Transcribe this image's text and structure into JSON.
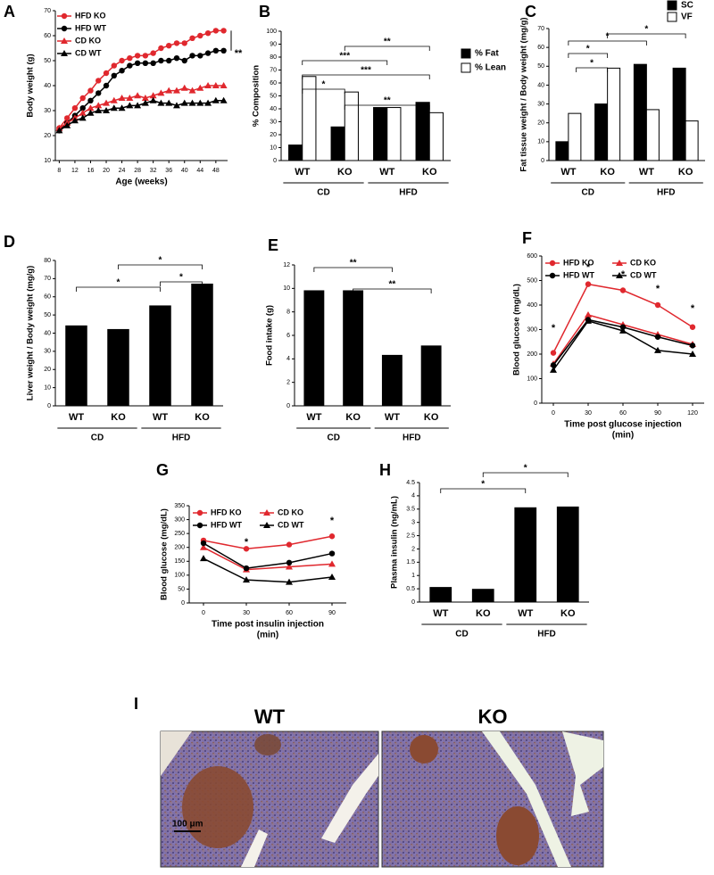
{
  "chart_data": [
    {
      "type": "line",
      "label": "A",
      "xlabel": "Age (weeks)",
      "ylabel": "Body weight (g)",
      "x": [
        8,
        10,
        12,
        14,
        16,
        18,
        20,
        22,
        24,
        26,
        28,
        30,
        32,
        34,
        36,
        38,
        40,
        42,
        44,
        46,
        48,
        50
      ],
      "xlim": [
        7,
        51
      ],
      "xticks": [
        8,
        12,
        16,
        20,
        24,
        28,
        32,
        36,
        40,
        44,
        48
      ],
      "ylim": [
        10,
        70
      ],
      "yticks": [
        10,
        20,
        30,
        40,
        50,
        60,
        70
      ],
      "legend": "upper left",
      "annotations": [
        "**"
      ],
      "series": [
        {
          "name": "HFD KO",
          "color": "#e0282e",
          "marker": "circle",
          "values": [
            23,
            27,
            31,
            35,
            38,
            42,
            45,
            48,
            50,
            51,
            52,
            52,
            53,
            55,
            56,
            57,
            57,
            59,
            60,
            61,
            62,
            62
          ]
        },
        {
          "name": "HFD WT",
          "color": "#000000",
          "marker": "circle",
          "values": [
            22,
            25,
            28,
            31,
            34,
            37,
            40,
            44,
            46,
            48,
            49,
            49,
            49,
            50,
            50,
            51,
            50,
            52,
            52,
            53,
            54,
            54
          ]
        },
        {
          "name": "CD KO",
          "color": "#e0282e",
          "marker": "triangle",
          "values": [
            23,
            25,
            27,
            29,
            31,
            32,
            33,
            34,
            35,
            35,
            36,
            35,
            36,
            37,
            38,
            38,
            39,
            38,
            39,
            40,
            40,
            40
          ]
        },
        {
          "name": "CD WT",
          "color": "#000000",
          "marker": "triangle",
          "values": [
            22,
            24,
            26,
            27,
            29,
            30,
            30,
            31,
            31,
            32,
            32,
            33,
            34,
            33,
            33,
            32,
            33,
            33,
            33,
            33,
            34,
            34
          ]
        }
      ]
    },
    {
      "type": "bar",
      "label": "B",
      "ylabel": "% Composition",
      "categories": [
        "WT",
        "KO",
        "WT",
        "KO"
      ],
      "groups": [
        "CD",
        "HFD"
      ],
      "ylim": [
        0,
        100
      ],
      "yticks": [
        0,
        10,
        20,
        30,
        40,
        50,
        60,
        70,
        80,
        90,
        100
      ],
      "legend": "right",
      "annotations": [
        "**",
        "***",
        "***",
        "*",
        "**"
      ],
      "series": [
        {
          "name": "% Fat",
          "color": "#000000",
          "values": [
            12,
            26,
            41,
            45
          ]
        },
        {
          "name": "% Lean",
          "color": "#ffffff",
          "values": [
            65,
            53,
            41,
            37
          ]
        }
      ]
    },
    {
      "type": "bar",
      "label": "C",
      "ylabel": "Fat tissue weight / Body weight (mg/g)",
      "categories": [
        "WT",
        "KO",
        "WT",
        "KO"
      ],
      "groups": [
        "CD",
        "HFD"
      ],
      "ylim": [
        0,
        70
      ],
      "yticks": [
        0,
        10,
        20,
        30,
        40,
        50,
        60,
        70
      ],
      "legend": "top",
      "annotations": [
        "*",
        "*",
        "*",
        "*"
      ],
      "series": [
        {
          "name": "SC",
          "color": "#000000",
          "values": [
            10,
            30,
            51,
            49
          ]
        },
        {
          "name": "VF",
          "color": "#ffffff",
          "values": [
            25,
            49,
            27,
            21
          ]
        }
      ]
    },
    {
      "type": "bar",
      "label": "D",
      "ylabel": "Liver weight / Body weight (mg/g)",
      "categories": [
        "WT",
        "KO",
        "WT",
        "KO"
      ],
      "groups": [
        "CD",
        "HFD"
      ],
      "ylim": [
        0,
        80
      ],
      "yticks": [
        0,
        10,
        20,
        30,
        40,
        50,
        60,
        70,
        80
      ],
      "annotations": [
        "*",
        "*",
        "*"
      ],
      "series": [
        {
          "color": "#000000",
          "values": [
            44,
            42,
            55,
            67
          ]
        }
      ]
    },
    {
      "type": "bar",
      "label": "E",
      "ylabel": "Food intake (g)",
      "categories": [
        "WT",
        "KO",
        "WT",
        "KO"
      ],
      "groups": [
        "CD",
        "HFD"
      ],
      "ylim": [
        0,
        12
      ],
      "yticks": [
        0,
        2,
        4,
        6,
        8,
        10,
        12
      ],
      "annotations": [
        "**",
        "**"
      ],
      "series": [
        {
          "color": "#000000",
          "values": [
            9.8,
            9.8,
            4.3,
            5.1
          ]
        }
      ]
    },
    {
      "type": "line",
      "label": "F",
      "xlabel": [
        "Time post glucose injection",
        "(min)"
      ],
      "ylabel": "Blood glucose (mg/dL)",
      "x": [
        0,
        30,
        60,
        90,
        120
      ],
      "xlim": [
        -10,
        130
      ],
      "xticks": [
        0,
        30,
        60,
        90,
        120
      ],
      "ylim": [
        0,
        600
      ],
      "yticks": [
        0,
        100,
        200,
        300,
        400,
        500,
        600
      ],
      "legend": "top",
      "annotations": [
        "*",
        "*",
        "*",
        "*",
        "*"
      ],
      "series": [
        {
          "name": "HFD KO",
          "color": "#e0282e",
          "marker": "circle",
          "values": [
            205,
            485,
            460,
            400,
            310
          ]
        },
        {
          "name": "CD KO",
          "color": "#e0282e",
          "marker": "triangle",
          "values": [
            160,
            360,
            320,
            280,
            240
          ]
        },
        {
          "name": "HFD WT",
          "color": "#000000",
          "marker": "circle",
          "values": [
            155,
            340,
            310,
            270,
            235
          ]
        },
        {
          "name": "CD WT",
          "color": "#000000",
          "marker": "triangle",
          "values": [
            135,
            335,
            295,
            215,
            200
          ]
        }
      ]
    },
    {
      "type": "line",
      "label": "G",
      "xlabel": [
        "Time post insulin injection",
        "(min)"
      ],
      "ylabel": "Blood glucose (mg/dL)",
      "x": [
        0,
        30,
        60,
        90
      ],
      "xlim": [
        -10,
        100
      ],
      "xticks": [
        0,
        30,
        60,
        90
      ],
      "ylim": [
        0,
        350
      ],
      "yticks": [
        0,
        50,
        100,
        150,
        200,
        250,
        300,
        350
      ],
      "legend": "top",
      "annotations": [
        "*",
        "*"
      ],
      "series": [
        {
          "name": "HFD KO",
          "color": "#e0282e",
          "marker": "circle",
          "values": [
            225,
            195,
            210,
            240
          ]
        },
        {
          "name": "CD KO",
          "color": "#e0282e",
          "marker": "triangle",
          "values": [
            200,
            120,
            130,
            140
          ]
        },
        {
          "name": "HFD WT",
          "color": "#000000",
          "marker": "circle",
          "values": [
            215,
            125,
            145,
            178
          ]
        },
        {
          "name": "CD WT",
          "color": "#000000",
          "marker": "triangle",
          "values": [
            160,
            83,
            75,
            93
          ]
        }
      ]
    },
    {
      "type": "bar",
      "label": "H",
      "ylabel": "Plasma insulin (ng/mL)",
      "categories": [
        "WT",
        "KO",
        "WT",
        "KO"
      ],
      "groups": [
        "CD",
        "HFD"
      ],
      "ylim": [
        0,
        4.5
      ],
      "yticks": [
        0,
        0.5,
        1,
        1.5,
        2,
        2.5,
        3,
        3.5,
        4,
        4.5
      ],
      "annotations": [
        "*",
        "*"
      ],
      "series": [
        {
          "color": "#000000",
          "values": [
            0.55,
            0.48,
            3.55,
            3.58
          ]
        }
      ]
    }
  ],
  "image_panel": {
    "label": "I",
    "titles": [
      "WT",
      "KO"
    ],
    "scale_bar": "100 μm"
  }
}
